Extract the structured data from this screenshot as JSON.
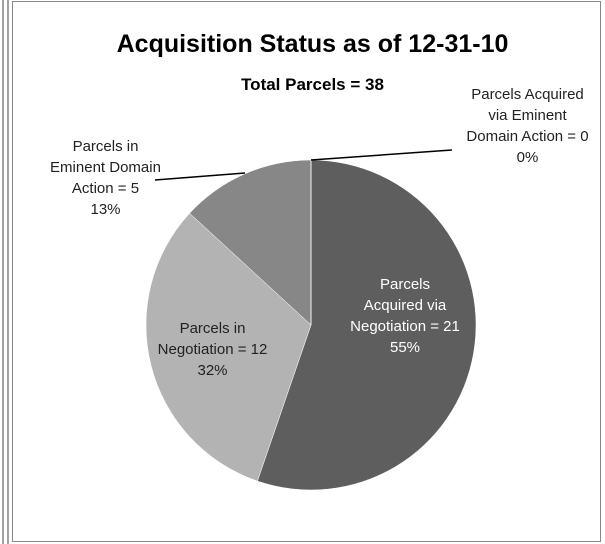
{
  "chart_data": {
    "type": "pie",
    "title": "Acquisition Status as of 12-31-10",
    "subtitle": "Total Parcels = 38",
    "categories": [
      "Parcels Acquired via Negotiation",
      "Parcels in Negotiation",
      "Parcels in Eminent Domain Action",
      "Parcels Acquired via Eminent Domain Action"
    ],
    "values": [
      21,
      12,
      5,
      0
    ],
    "value_labels": [
      "= 21",
      "= 12",
      "= 5",
      "= 0"
    ],
    "percentages": [
      55,
      32,
      13,
      0
    ],
    "percent_labels": [
      "55%",
      "32%",
      "13%",
      "0%"
    ],
    "colors": [
      "#5e5e5e",
      "#b3b3b3",
      "#878787",
      "#a0a0a0"
    ]
  }
}
